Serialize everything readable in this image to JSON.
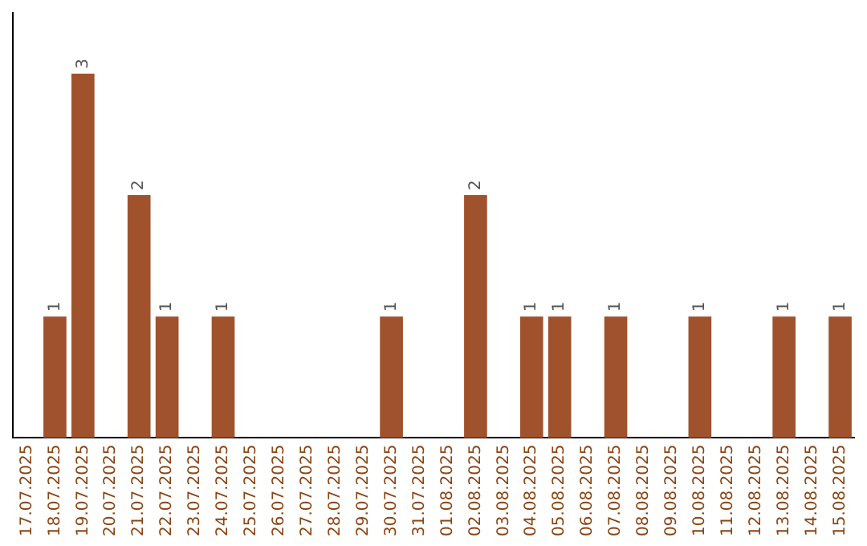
{
  "chart_data": {
    "type": "bar",
    "categories": [
      "17.07.2025",
      "18.07.2025",
      "19.07.2025",
      "20.07.2025",
      "21.07.2025",
      "22.07.2025",
      "23.07.2025",
      "24.07.2025",
      "25.07.2025",
      "26.07.2025",
      "27.07.2025",
      "28.07.2025",
      "29.07.2025",
      "30.07.2025",
      "31.07.2025",
      "01.08.2025",
      "02.08.2025",
      "03.08.2025",
      "04.08.2025",
      "05.08.2025",
      "06.08.2025",
      "07.08.2025",
      "08.08.2025",
      "09.08.2025",
      "10.08.2025",
      "11.08.2025",
      "12.08.2025",
      "13.08.2025",
      "14.08.2025",
      "15.08.2025"
    ],
    "values": [
      0,
      1,
      3,
      0,
      2,
      1,
      0,
      1,
      0,
      0,
      0,
      0,
      0,
      1,
      0,
      0,
      2,
      0,
      1,
      1,
      0,
      1,
      0,
      0,
      1,
      0,
      0,
      1,
      0,
      1
    ],
    "value_labels": [
      null,
      "1",
      "3",
      null,
      "2",
      "1",
      null,
      "1",
      null,
      null,
      null,
      null,
      null,
      "1",
      null,
      null,
      "2",
      null,
      "1",
      "1",
      null,
      "1",
      null,
      null,
      "1",
      null,
      null,
      "1",
      null,
      "1"
    ],
    "color": "#a0522d",
    "tick_labels": "x",
    "grid": false,
    "legend": false
  }
}
